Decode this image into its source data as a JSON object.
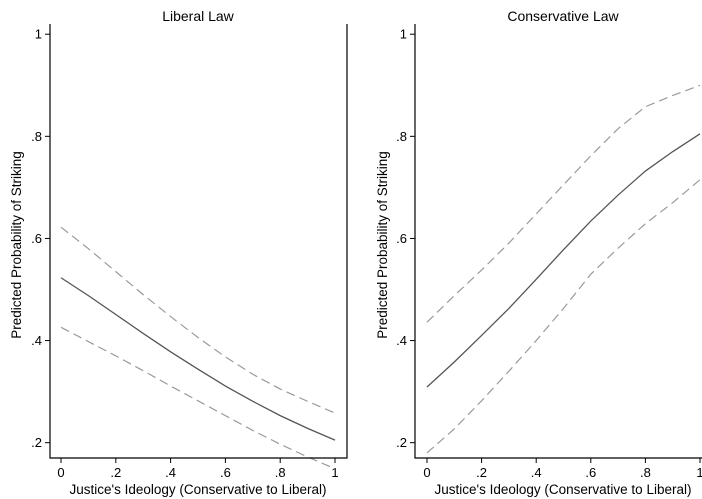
{
  "chart_data": [
    {
      "type": "line",
      "title": "Liberal Law",
      "xlabel": "Justice's Ideology (Conservative to Liberal)",
      "ylabel": "Predicted Probability of Striking",
      "xlim": [
        0,
        1
      ],
      "ylim": [
        0.17,
        1.02
      ],
      "xticks": [
        0,
        0.2,
        0.4,
        0.6,
        0.8,
        1
      ],
      "xtick_labels": [
        "0",
        ".2",
        ".4",
        ".6",
        ".8",
        "1"
      ],
      "yticks": [
        0.2,
        0.4,
        0.6,
        0.8,
        1
      ],
      "ytick_labels": [
        ".2",
        ".4",
        ".6",
        ".8",
        "1"
      ],
      "grid": false,
      "x": [
        0,
        0.1,
        0.2,
        0.3,
        0.4,
        0.5,
        0.6,
        0.7,
        0.8,
        0.9,
        1
      ],
      "series": [
        {
          "role": "upper",
          "style": "dashed",
          "color": "#9a9a9a",
          "values": [
            0.622,
            0.58,
            0.535,
            0.49,
            0.447,
            0.406,
            0.368,
            0.334,
            0.305,
            0.281,
            0.258
          ]
        },
        {
          "role": "estimate",
          "style": "solid",
          "color": "#555555",
          "values": [
            0.523,
            0.488,
            0.451,
            0.414,
            0.378,
            0.344,
            0.311,
            0.281,
            0.253,
            0.228,
            0.205
          ]
        },
        {
          "role": "lower",
          "style": "dashed",
          "color": "#9a9a9a",
          "values": [
            0.426,
            0.398,
            0.37,
            0.341,
            0.311,
            0.282,
            0.253,
            0.224,
            0.197,
            0.172,
            0.149
          ]
        }
      ]
    },
    {
      "type": "line",
      "title": "Conservative Law",
      "xlabel": "Justice's Ideology (Conservative to Liberal)",
      "ylabel": "Predicted Probability of Striking",
      "xlim": [
        0,
        1
      ],
      "ylim": [
        0.17,
        1.02
      ],
      "xticks": [
        0,
        0.2,
        0.4,
        0.6,
        0.8,
        1
      ],
      "xtick_labels": [
        "0",
        ".2",
        ".4",
        ".6",
        ".8",
        "1"
      ],
      "yticks": [
        0.2,
        0.4,
        0.6,
        0.8,
        1
      ],
      "ytick_labels": [
        ".2",
        ".4",
        ".6",
        ".8",
        "1"
      ],
      "grid": false,
      "x": [
        0,
        0.1,
        0.2,
        0.3,
        0.4,
        0.5,
        0.6,
        0.7,
        0.8,
        0.9,
        1
      ],
      "series": [
        {
          "role": "upper",
          "style": "dashed",
          "color": "#9a9a9a",
          "values": [
            0.436,
            0.488,
            0.538,
            0.591,
            0.648,
            0.705,
            0.762,
            0.815,
            0.858,
            0.88,
            0.9
          ]
        },
        {
          "role": "estimate",
          "style": "solid",
          "color": "#555555",
          "values": [
            0.309,
            0.358,
            0.41,
            0.463,
            0.52,
            0.578,
            0.634,
            0.685,
            0.732,
            0.77,
            0.805
          ]
        },
        {
          "role": "lower",
          "style": "dashed",
          "color": "#9a9a9a",
          "values": [
            0.18,
            0.227,
            0.282,
            0.34,
            0.4,
            0.463,
            0.53,
            0.581,
            0.629,
            0.67,
            0.715
          ]
        }
      ]
    }
  ]
}
